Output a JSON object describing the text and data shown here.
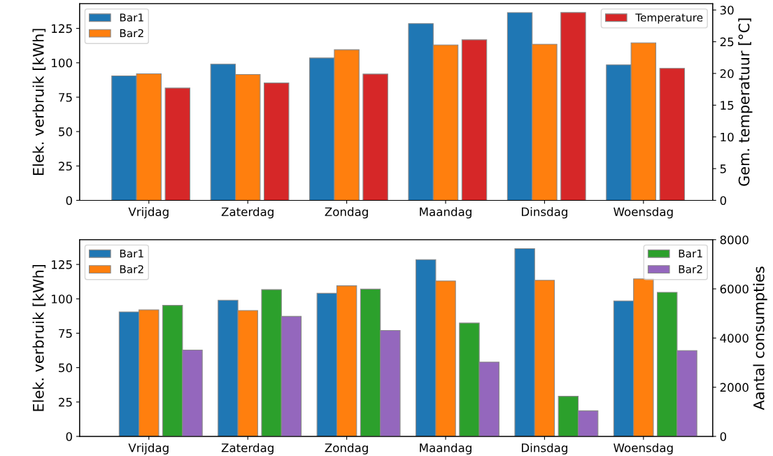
{
  "chart_data": [
    {
      "type": "bar",
      "categories": [
        "Vrijdag",
        "Zaterdag",
        "Zondag",
        "Maandag",
        "Dinsdag",
        "Woensdag"
      ],
      "ylabel": "Elek. verbruik [kWh]",
      "y2label": "Gem. temperatuur [°C]",
      "ylim": [
        0,
        143
      ],
      "yticks": [
        0,
        25,
        50,
        75,
        100,
        125
      ],
      "y2lim": [
        0,
        31
      ],
      "y2ticks": [
        0,
        5,
        10,
        15,
        20,
        25,
        30
      ],
      "legend": "top",
      "grid": false,
      "series": [
        {
          "name": "Bar1",
          "color": "#1f77b4",
          "values": [
            90.5,
            99,
            103.5,
            128.5,
            136.5,
            98.5
          ]
        },
        {
          "name": "Bar2",
          "color": "#ff7f0e",
          "values": [
            92,
            91.5,
            109.5,
            113,
            113.5,
            114.5
          ]
        },
        {
          "name": "Temperature",
          "color": "#d62728",
          "axis": "y2",
          "values": [
            17.7,
            18.5,
            19.9,
            25.3,
            29.6,
            20.8
          ]
        }
      ]
    },
    {
      "type": "bar",
      "categories": [
        "Vrijdag",
        "Zaterdag",
        "Zondag",
        "Maandag",
        "Dinsdag",
        "Woensdag"
      ],
      "ylabel": "Elek. verbruik [kWh]",
      "y2label": "Aantal consumpties",
      "ylim": [
        0,
        143
      ],
      "yticks": [
        0,
        25,
        50,
        75,
        100,
        125
      ],
      "y2lim": [
        0,
        8000
      ],
      "y2ticks": [
        0,
        2000,
        4000,
        6000,
        8000
      ],
      "legend": "top",
      "grid": false,
      "series": [
        {
          "name": "Bar1",
          "color": "#1f77b4",
          "values": [
            90.5,
            99,
            104,
            128.5,
            136.5,
            98.5
          ]
        },
        {
          "name": "Bar2",
          "color": "#ff7f0e",
          "values": [
            92,
            91.5,
            109.5,
            113,
            113.5,
            114.5
          ]
        },
        {
          "name": "Bar1",
          "color": "#2ca02c",
          "axis": "y2",
          "values": [
            5330,
            5970,
            5990,
            4610,
            1630,
            5860
          ]
        },
        {
          "name": "Bar2",
          "color": "#9467bd",
          "axis": "y2",
          "values": [
            3510,
            4880,
            4310,
            3020,
            1040,
            3490
          ]
        }
      ]
    }
  ]
}
